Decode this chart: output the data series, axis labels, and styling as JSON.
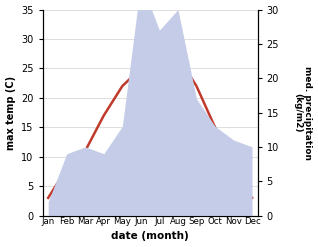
{
  "months": [
    "Jan",
    "Feb",
    "Mar",
    "Apr",
    "May",
    "Jun",
    "Jul",
    "Aug",
    "Sep",
    "Oct",
    "Nov",
    "Dec"
  ],
  "max_temp": [
    3,
    8,
    11,
    17,
    22,
    25,
    27,
    27,
    22,
    15,
    8,
    3
  ],
  "precipitation": [
    2,
    9,
    10,
    9,
    13,
    34,
    27,
    30,
    17,
    13,
    11,
    10
  ],
  "temp_color": "#c0392b",
  "precip_fill_color": "#c5cce8",
  "precip_edge_color": "#aab4d8",
  "temp_ylim": [
    0,
    35
  ],
  "precip_ylim": [
    0,
    30
  ],
  "temp_yticks": [
    0,
    5,
    10,
    15,
    20,
    25,
    30,
    35
  ],
  "precip_yticks": [
    0,
    5,
    10,
    15,
    20,
    25,
    30
  ],
  "ylabel_left": "max temp (C)",
  "ylabel_right": "med. precipitation\n(kg/m2)",
  "xlabel": "date (month)",
  "grid_color": "#d0d0d0"
}
